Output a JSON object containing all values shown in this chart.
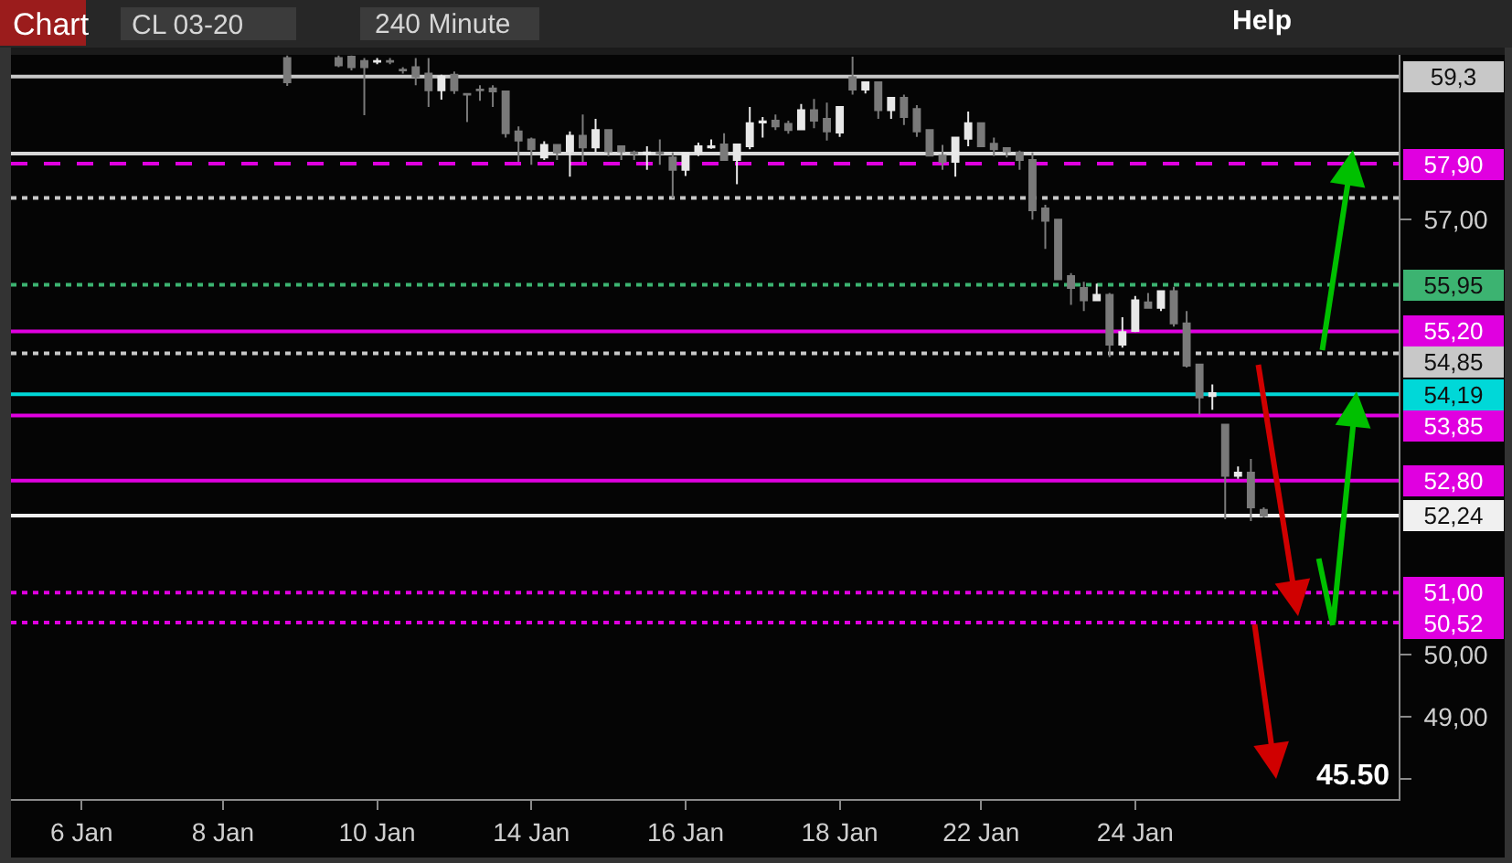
{
  "chart_data": {
    "type": "candlestick",
    "title": "CL 03-20",
    "subtitle": "240 Minute",
    "annotations": [
      "Chart",
      "Help",
      "45.50"
    ],
    "categories": [
      null,
      null,
      null,
      null,
      null,
      "6 Jan",
      null,
      null,
      null,
      null,
      null,
      null,
      null,
      null,
      null,
      null,
      "8 Jan",
      null,
      null,
      null,
      null,
      null,
      null,
      null,
      null,
      null,
      null,
      null,
      "10 Jan",
      null,
      null,
      null,
      null,
      null,
      null,
      null,
      null,
      null,
      null,
      null,
      "14 Jan",
      null,
      null,
      null,
      null,
      null,
      null,
      null,
      null,
      null,
      null,
      null,
      "16 Jan",
      null,
      null,
      null,
      null,
      null,
      null,
      null,
      null,
      null,
      null,
      null,
      "18 Jan",
      null,
      null,
      null,
      null,
      null,
      null,
      null,
      null,
      null,
      null,
      "22 Jan",
      null,
      null,
      null,
      null,
      null,
      null,
      null,
      null,
      null,
      null,
      null,
      "24 Jan",
      null,
      null,
      null,
      null,
      null,
      null,
      null,
      null,
      null,
      null,
      null,
      null,
      null,
      null,
      null,
      null,
      null,
      null,
      null,
      null
    ],
    "ohlc": [
      null,
      null,
      null,
      null,
      null,
      null,
      null,
      null,
      null,
      null,
      null,
      null,
      null,
      null,
      null,
      null,
      null,
      null,
      null,
      null,
      null,
      [
        59.6,
        59.64,
        59.15,
        59.21
      ],
      null,
      null,
      null,
      [
        59.6,
        59.64,
        59.45,
        59.48
      ],
      [
        59.62,
        59.64,
        59.4,
        59.45
      ],
      [
        59.55,
        59.6,
        58.68,
        59.45
      ],
      [
        59.54,
        59.6,
        59.5,
        59.55
      ],
      [
        59.55,
        59.6,
        59.5,
        59.54
      ],
      [
        59.41,
        59.45,
        59.35,
        59.4
      ],
      [
        59.45,
        59.6,
        59.16,
        59.3
      ],
      [
        59.35,
        59.6,
        58.81,
        59.08
      ],
      [
        59.08,
        59.33,
        58.93,
        59.3
      ],
      [
        59.33,
        59.38,
        59.02,
        59.08
      ],
      [
        59.02,
        59.02,
        58.57,
        59.01
      ],
      [
        59.09,
        59.16,
        58.91,
        59.08
      ],
      [
        59.11,
        59.16,
        58.81,
        59.06
      ],
      [
        59.06,
        59.06,
        58.32,
        58.39
      ],
      [
        58.42,
        58.5,
        57.93,
        58.27
      ],
      [
        58.29,
        58.32,
        57.88,
        58.13
      ],
      [
        58.0,
        58.26,
        57.96,
        58.2
      ],
      [
        58.2,
        58.2,
        57.96,
        58.08
      ],
      [
        58.1,
        58.42,
        57.69,
        58.35
      ],
      [
        58.35,
        58.69,
        57.93,
        58.16
      ],
      [
        58.16,
        58.62,
        58.08,
        58.44
      ],
      [
        58.44,
        58.44,
        58.02,
        58.1
      ],
      [
        58.18,
        58.18,
        57.96,
        58.1
      ],
      [
        58.08,
        58.11,
        57.96,
        58.06
      ],
      [
        58.06,
        58.18,
        57.8,
        58.08
      ],
      [
        58.08,
        58.29,
        57.88,
        58.06
      ],
      [
        58.0,
        58.08,
        57.34,
        57.8
      ],
      [
        57.8,
        58.06,
        57.7,
        58.06
      ],
      [
        58.08,
        58.24,
        58.02,
        58.18
      ],
      [
        58.16,
        58.29,
        58.14,
        58.18
      ],
      [
        58.21,
        58.39,
        57.96,
        57.96
      ],
      [
        57.96,
        58.21,
        57.57,
        58.21
      ],
      [
        58.18,
        58.81,
        58.13,
        58.55
      ],
      [
        58.56,
        58.65,
        58.32,
        58.58
      ],
      [
        58.59,
        58.69,
        58.44,
        58.5
      ],
      [
        58.54,
        58.59,
        58.38,
        58.44
      ],
      [
        58.45,
        58.86,
        58.45,
        58.76
      ],
      [
        58.76,
        58.94,
        58.47,
        58.59
      ],
      [
        58.62,
        58.88,
        58.27,
        58.42
      ],
      [
        58.4,
        58.81,
        58.33,
        58.81
      ],
      [
        59.29,
        59.62,
        59.01,
        59.09
      ],
      [
        59.09,
        59.21,
        59.03,
        59.21
      ],
      [
        59.21,
        59.21,
        58.62,
        58.76
      ],
      [
        58.76,
        58.96,
        58.62,
        58.96
      ],
      [
        58.96,
        59.01,
        58.52,
        58.65
      ],
      [
        58.78,
        58.84,
        58.33,
        58.42
      ],
      [
        58.44,
        58.44,
        58.03,
        58.03
      ],
      [
        58.03,
        58.2,
        57.8,
        57.93
      ],
      [
        57.93,
        58.32,
        57.69,
        58.32
      ],
      [
        58.3,
        58.74,
        58.18,
        58.55
      ],
      [
        58.55,
        58.55,
        58.18,
        58.18
      ],
      [
        58.22,
        58.32,
        58.02,
        58.13
      ],
      [
        58.15,
        58.15,
        58.0,
        58.1
      ],
      [
        58.08,
        58.11,
        57.8,
        57.96
      ],
      [
        57.96,
        58.08,
        57.0,
        57.15
      ],
      [
        57.18,
        57.24,
        56.53,
        56.98
      ],
      [
        57.0,
        57.0,
        56.03,
        56.04
      ],
      [
        56.09,
        56.14,
        55.63,
        55.9
      ],
      [
        55.9,
        56.0,
        55.53,
        55.7
      ],
      [
        55.7,
        55.97,
        55.7,
        55.79
      ],
      [
        55.79,
        55.82,
        54.79,
        54.99
      ],
      [
        54.99,
        55.43,
        54.94,
        55.19
      ],
      [
        55.21,
        55.77,
        55.19,
        55.7
      ],
      [
        55.67,
        55.82,
        55.58,
        55.58
      ],
      [
        55.58,
        55.85,
        55.53,
        55.85
      ],
      [
        55.85,
        55.92,
        55.28,
        55.33
      ],
      [
        55.33,
        55.53,
        54.62,
        54.65
      ],
      [
        54.67,
        54.67,
        53.86,
        54.14
      ],
      [
        54.16,
        54.35,
        53.94,
        54.21
      ],
      [
        53.7,
        53.7,
        52.18,
        52.88
      ],
      [
        52.88,
        53.03,
        52.83,
        52.93
      ],
      [
        52.93,
        53.15,
        52.15,
        52.37
      ],
      [
        52.33,
        52.37,
        52.21,
        52.24
      ],
      null,
      null,
      null,
      null,
      null,
      null,
      null,
      null,
      null,
      null
    ],
    "colors": [
      null,
      null,
      null,
      null,
      null,
      null,
      null,
      null,
      null,
      null,
      null,
      null,
      null,
      null,
      null,
      null,
      null,
      null,
      null,
      null,
      null,
      "#7a7a7a",
      null,
      null,
      null,
      "#7a7a7a",
      "#7a7a7a",
      "#7a7a7a",
      "#e8e8e8",
      "#7a7a7a",
      "#7a7a7a",
      "#7a7a7a",
      "#7a7a7a",
      "#e8e8e8",
      "#7a7a7a",
      "#7a7a7a",
      "#7a7a7a",
      "#7a7a7a",
      "#7a7a7a",
      "#7a7a7a",
      "#7a7a7a",
      "#e8e8e8",
      "#7a7a7a",
      "#e8e8e8",
      "#7a7a7a",
      "#e8e8e8",
      "#7a7a7a",
      "#7a7a7a",
      "#7a7a7a",
      "#e8e8e8",
      "#7a7a7a",
      "#7a7a7a",
      "#e8e8e8",
      "#e8e8e8",
      "#e8e8e8",
      "#7a7a7a",
      "#e8e8e8",
      "#e8e8e8",
      "#e8e8e8",
      "#7a7a7a",
      "#7a7a7a",
      "#e8e8e8",
      "#7a7a7a",
      "#7a7a7a",
      "#e8e8e8",
      "#7a7a7a",
      "#e8e8e8",
      "#7a7a7a",
      "#e8e8e8",
      "#7a7a7a",
      "#7a7a7a",
      "#7a7a7a",
      "#7a7a7a",
      "#e8e8e8",
      "#e8e8e8",
      "#7a7a7a",
      "#7a7a7a",
      "#7a7a7a",
      "#7a7a7a",
      "#7a7a7a",
      "#7a7a7a",
      "#7a7a7a",
      "#7a7a7a",
      "#7a7a7a",
      "#e8e8e8",
      "#7a7a7a",
      "#e8e8e8",
      "#e8e8e8",
      "#7a7a7a",
      "#e8e8e8",
      "#7a7a7a",
      "#7a7a7a",
      "#7a7a7a",
      "#e8e8e8",
      "#7a7a7a",
      "#e8e8e8",
      "#7a7a7a",
      "#7a7a7a",
      null,
      null,
      null,
      null,
      null,
      null,
      null,
      null,
      null,
      null
    ],
    "ylim": [
      47.68,
      59.65
    ],
    "yticks": [
      {
        "value": 48,
        "label": null
      },
      {
        "value": 49,
        "label": "49,00"
      },
      {
        "value": 50,
        "label": "50,00"
      },
      {
        "value": 57,
        "label": "57,00"
      }
    ],
    "ref_lines": [
      {
        "axis": "y",
        "value": 59.3,
        "label": "59,3",
        "color": "#c8c8c8",
        "line_style": "solid"
      },
      {
        "axis": "y",
        "value": 58.06,
        "label": null,
        "color": "#d8d8d8",
        "line_style": "solid"
      },
      {
        "axis": "y",
        "value": 57.9,
        "label": "57,90",
        "color": "#e000e0",
        "line_style": "dashed"
      },
      {
        "axis": "y",
        "value": 57.35,
        "label": null,
        "color": "#c8c8c8",
        "line_style": "dotted"
      },
      {
        "axis": "y",
        "value": 55.95,
        "label": "55,95",
        "color": "#3cb371",
        "line_style": "dotted"
      },
      {
        "axis": "y",
        "value": 55.2,
        "label": "55,20",
        "color": "#e000e0",
        "line_style": "solid"
      },
      {
        "axis": "y",
        "value": 54.85,
        "label": "54,85",
        "color": "#c8c8c8",
        "line_style": "dotted"
      },
      {
        "axis": "y",
        "value": 54.19,
        "label": "54,19",
        "color": "#00d8d8",
        "line_style": "solid"
      },
      {
        "axis": "y",
        "value": 53.85,
        "label": "53,85",
        "color": "#e000e0",
        "line_style": "solid"
      },
      {
        "axis": "y",
        "value": 52.8,
        "label": "52,80",
        "color": "#e000e0",
        "line_style": "solid"
      },
      {
        "axis": "y",
        "value": 52.24,
        "label": "52,24",
        "color": "#f0f0f0",
        "line_style": "solid"
      },
      {
        "axis": "y",
        "value": 51.0,
        "label": "51,00",
        "color": "#e000e0",
        "line_style": "dotted"
      },
      {
        "axis": "y",
        "value": 50.52,
        "label": "50,52",
        "color": "#e000e0",
        "line_style": "dotted"
      }
    ]
  }
}
